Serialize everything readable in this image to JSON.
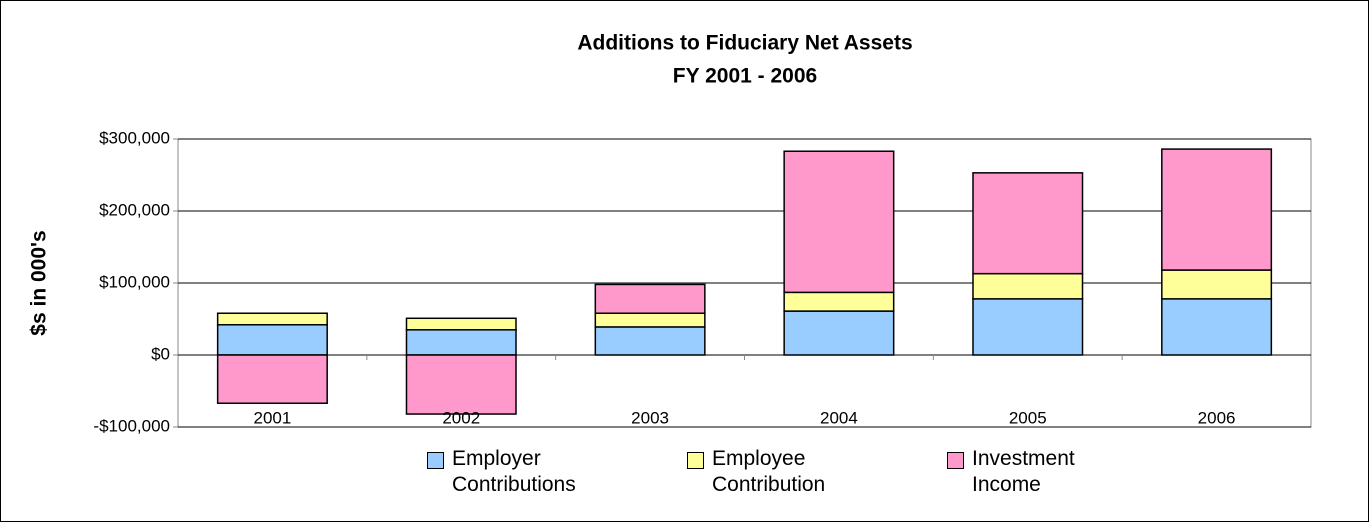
{
  "chart_data": {
    "type": "bar",
    "stacked": true,
    "title": "Additions to Fiduciary Net Assets",
    "subtitle": "FY 2001 - 2006",
    "y_label": "$s in 000's",
    "categories": [
      "2001",
      "2002",
      "2003",
      "2004",
      "2005",
      "2006"
    ],
    "series": [
      {
        "name": "Employer Contributions",
        "color": "#99ccff",
        "values": [
          42000,
          35000,
          39000,
          61000,
          78000,
          78000
        ]
      },
      {
        "name": "Employee Contribution",
        "color": "#ffff99",
        "values": [
          16000,
          16000,
          19000,
          26000,
          35000,
          40000
        ]
      },
      {
        "name": "Investment Income",
        "color": "#ff99cc",
        "values": [
          -67000,
          -82000,
          40000,
          196000,
          140000,
          168000
        ]
      }
    ],
    "ylim": [
      -100000,
      300000
    ],
    "yticks": [
      {
        "value": -100000,
        "label": "-$100,000"
      },
      {
        "value": 0,
        "label": "$0"
      },
      {
        "value": 100000,
        "label": "$100,000"
      },
      {
        "value": 200000,
        "label": "$200,000"
      },
      {
        "value": 300000,
        "label": "$300,000"
      }
    ],
    "grid": true,
    "legend": "bottom"
  }
}
